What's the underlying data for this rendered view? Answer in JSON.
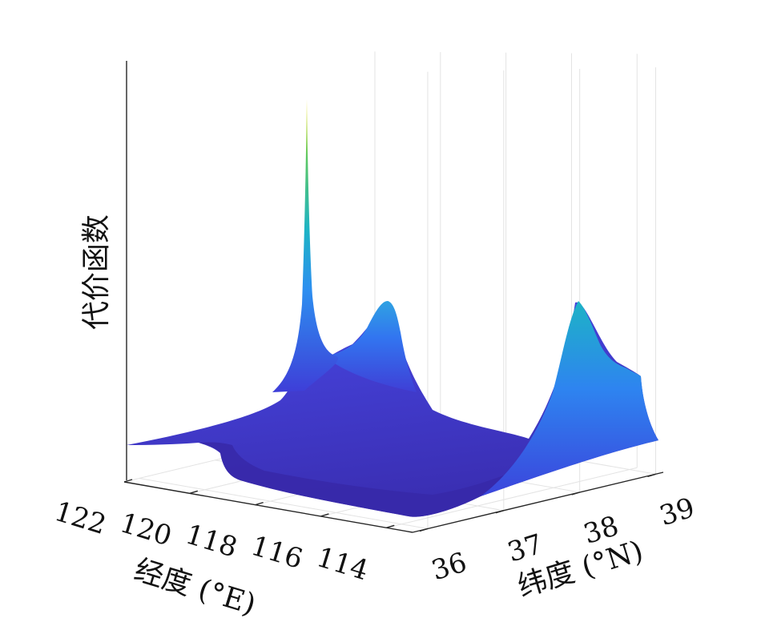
{
  "chart_data": {
    "type": "surface",
    "zlabel": "代价函数",
    "xlabel": "经度 (°E)",
    "ylabel": "纬度 (°N)",
    "x_ticks": [
      "122",
      "120",
      "118",
      "116",
      "114"
    ],
    "y_ticks": [
      "36",
      "37",
      "38",
      "39"
    ],
    "xlim": [
      113.2,
      122.0
    ],
    "ylim": [
      35.8,
      39.1
    ],
    "grid": true,
    "colormap": [
      "#3E26A8",
      "#4353EE",
      "#2D8FF0",
      "#1DB3C6",
      "#5CC863",
      "#F9E721"
    ],
    "features": [
      {
        "name": "narrow spike",
        "lon": 117.4,
        "lat": 37.6,
        "relative_height": 1.0
      },
      {
        "name": "broad peak",
        "lon": 116.6,
        "lat": 37.8,
        "relative_height": 0.44
      },
      {
        "name": "right peak",
        "lon": 114.3,
        "lat": 38.6,
        "relative_height": 0.43
      },
      {
        "name": "baseline plateau",
        "relative_height": 0.04
      }
    ]
  }
}
